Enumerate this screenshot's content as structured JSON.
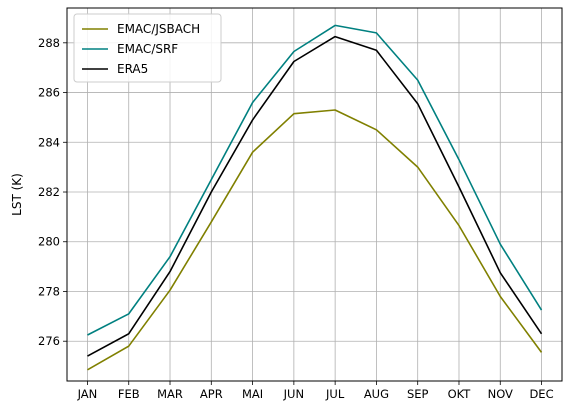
{
  "chart_data": {
    "type": "line",
    "title": "",
    "xlabel": "",
    "ylabel": "LST (K)",
    "categories": [
      "JAN",
      "FEB",
      "MAR",
      "APR",
      "MAI",
      "JUN",
      "JUL",
      "AUG",
      "SEP",
      "OKT",
      "NOV",
      "DEC"
    ],
    "ylim": [
      274.4,
      289.4
    ],
    "yticks": [
      "276",
      "278",
      "280",
      "282",
      "284",
      "286",
      "288"
    ],
    "grid": true,
    "legend_position": "top-left",
    "series": [
      {
        "name": "EMAC/JSBACH",
        "color": "#808000",
        "values": [
          274.85,
          275.8,
          278.05,
          280.8,
          283.6,
          285.15,
          285.3,
          284.5,
          283.0,
          280.65,
          277.8,
          275.55
        ]
      },
      {
        "name": "EMAC/SRF",
        "color": "#008080",
        "values": [
          276.25,
          277.1,
          279.4,
          282.5,
          285.6,
          287.65,
          288.7,
          288.4,
          286.5,
          283.3,
          279.9,
          277.25
        ]
      },
      {
        "name": "ERA5",
        "color": "#000000",
        "values": [
          275.4,
          276.3,
          278.8,
          282.0,
          284.9,
          287.25,
          288.25,
          287.7,
          285.55,
          282.2,
          278.75,
          276.3
        ]
      }
    ]
  }
}
